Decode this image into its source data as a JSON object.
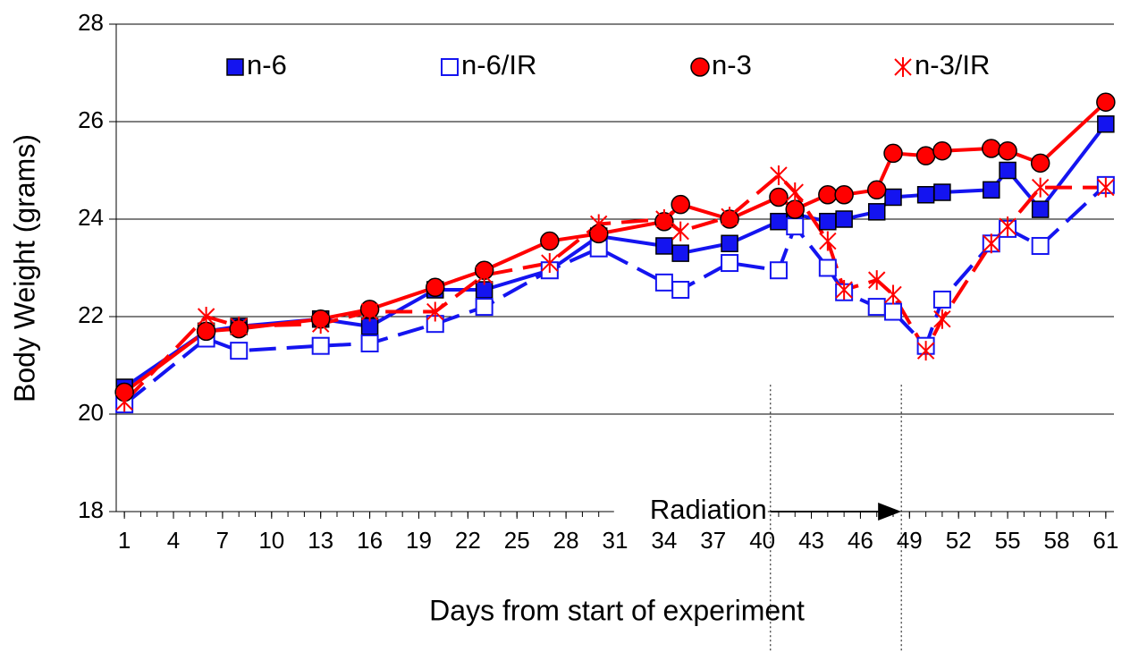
{
  "chart_data": {
    "type": "line",
    "x_label": "Days from start of experiment",
    "y_label": "Body Weight (grams)",
    "x": [
      1,
      6,
      8,
      13,
      16,
      20,
      23,
      27,
      30,
      34,
      35,
      38,
      41,
      42,
      44,
      45,
      47,
      48,
      50,
      51,
      54,
      55,
      57,
      61
    ],
    "series": [
      {
        "name": "n-6",
        "color": "#1414f0",
        "marker": "square-filled",
        "dashed": false,
        "values": [
          20.55,
          21.7,
          21.8,
          21.95,
          21.8,
          22.55,
          22.55,
          22.95,
          23.65,
          23.45,
          23.3,
          23.5,
          23.95,
          24.1,
          23.95,
          24.0,
          24.15,
          24.45,
          24.5,
          24.55,
          24.6,
          25.0,
          24.2,
          25.95
        ]
      },
      {
        "name": "n-6/IR",
        "color": "#1414f0",
        "marker": "square-open",
        "dashed": true,
        "values": [
          20.2,
          21.55,
          21.3,
          21.4,
          21.45,
          21.85,
          22.2,
          22.95,
          23.4,
          22.7,
          22.55,
          23.1,
          22.95,
          23.85,
          23.0,
          22.5,
          22.2,
          22.1,
          21.4,
          22.35,
          23.5,
          23.8,
          23.45,
          24.7
        ]
      },
      {
        "name": "n-3",
        "color": "#ff0000",
        "marker": "circle",
        "dashed": false,
        "values": [
          20.45,
          21.7,
          21.75,
          21.95,
          22.15,
          22.6,
          22.95,
          23.55,
          23.7,
          23.95,
          24.3,
          24.0,
          24.45,
          24.2,
          24.5,
          24.5,
          24.6,
          25.35,
          25.3,
          25.4,
          25.45,
          25.4,
          25.15,
          26.4
        ]
      },
      {
        "name": "n-3/IR",
        "color": "#ff0000",
        "marker": "asterisk",
        "dashed": true,
        "values": [
          20.25,
          22.0,
          21.8,
          21.85,
          22.1,
          22.1,
          22.85,
          23.1,
          23.9,
          24.0,
          23.75,
          24.05,
          24.9,
          24.55,
          23.55,
          22.55,
          22.75,
          22.45,
          21.3,
          21.95,
          23.5,
          23.85,
          24.65,
          24.65
        ]
      }
    ],
    "xlim": [
      0.5,
      61.5
    ],
    "xticks": [
      1,
      4,
      7,
      10,
      13,
      16,
      19,
      22,
      25,
      28,
      31,
      34,
      37,
      40,
      43,
      46,
      49,
      52,
      55,
      58,
      61
    ],
    "ylim": [
      18,
      28
    ],
    "yticks": [
      18,
      20,
      22,
      24,
      26,
      28
    ],
    "grid": true,
    "legend": "top",
    "annotations": [
      {
        "text": "Radiation",
        "x": [
          40.5,
          48.5
        ]
      }
    ]
  }
}
